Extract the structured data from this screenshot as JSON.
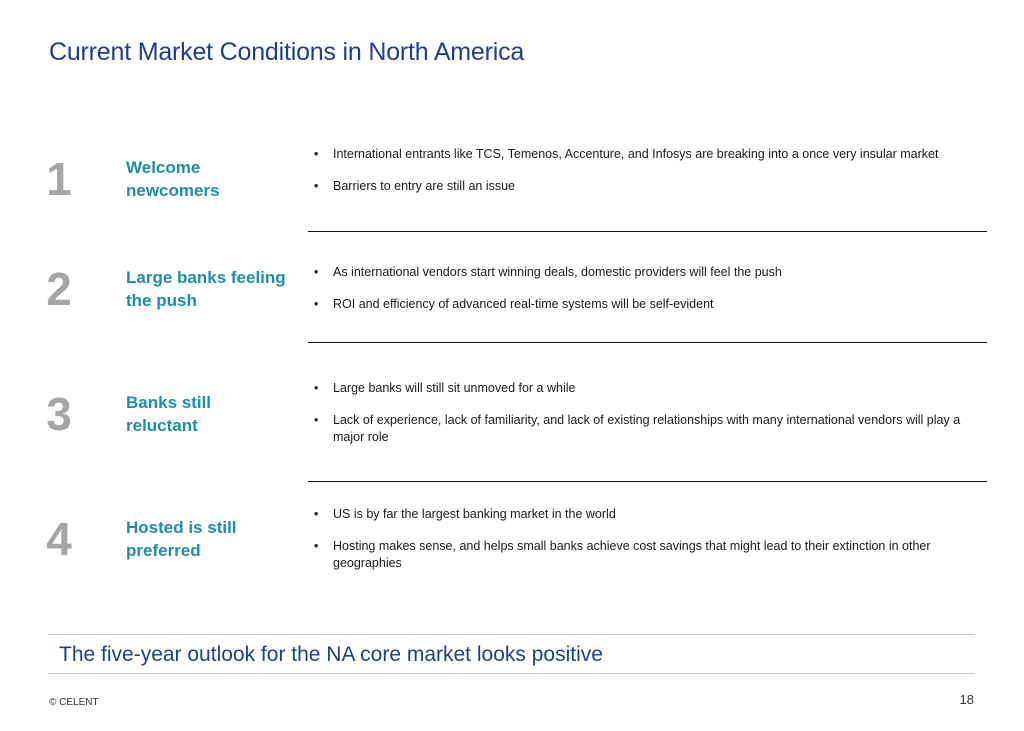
{
  "slide": {
    "title": "Current Market Conditions in North America",
    "sections": [
      {
        "number": "1",
        "heading": "Welcome newcomers",
        "bullets": [
          "International entrants like TCS, Temenos, Accenture, and Infosys are breaking into a once very insular market",
          "Barriers to entry are still an issue"
        ]
      },
      {
        "number": "2",
        "heading": "Large banks feeling the push",
        "bullets": [
          "As international vendors start winning deals,  domestic providers will feel the push",
          "ROI and efficiency of advanced real-time systems will be self-evident"
        ]
      },
      {
        "number": "3",
        "heading": "Banks still reluctant",
        "bullets": [
          "Large banks will still sit unmoved for a while",
          "Lack of experience, lack of familiarity, and lack of existing relationships with many international vendors will play a major role"
        ]
      },
      {
        "number": "4",
        "heading": "Hosted is still preferred",
        "bullets": [
          "US is by far the largest banking market in the world",
          "Hosting makes sense, and helps small banks achieve cost savings that might lead to their extinction in other geographies"
        ]
      }
    ],
    "outlook": "The five-year outlook for the NA core market looks positive",
    "footer": "© CELENT",
    "page_number": "18"
  }
}
